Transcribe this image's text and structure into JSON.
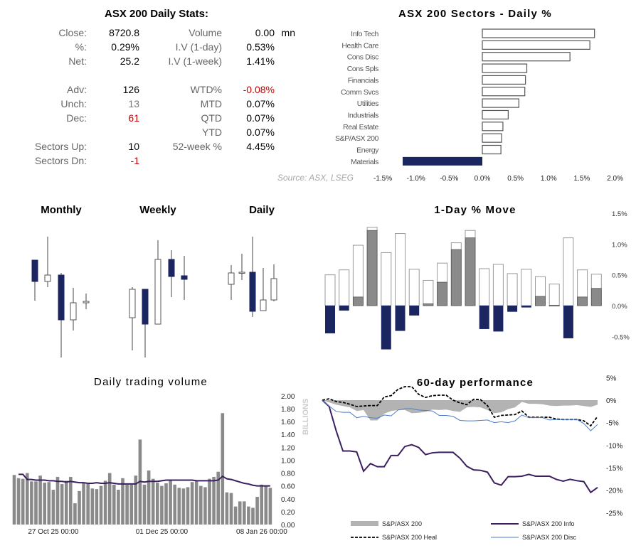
{
  "stats": {
    "title": "ASX 200 Daily Stats:",
    "left": [
      {
        "label": "Close:",
        "value": "8720.8",
        "tone": "normal"
      },
      {
        "label": "%:",
        "value": "0.29%",
        "tone": "normal"
      },
      {
        "label": "Net:",
        "value": "25.2",
        "tone": "normal"
      },
      {
        "label": "Adv:",
        "value": "126",
        "tone": "normal"
      },
      {
        "label": "Unch:",
        "value": "13",
        "tone": "gray"
      },
      {
        "label": "Dec:",
        "value": "61",
        "tone": "red"
      },
      {
        "label": "Sectors Up:",
        "value": "10",
        "tone": "normal"
      },
      {
        "label": "Sectors Dn:",
        "value": "-1",
        "tone": "red"
      }
    ],
    "right": [
      {
        "label": "Volume",
        "value": "0.00",
        "unit": "mn",
        "tone": "normal"
      },
      {
        "label": "I.V (1-day)",
        "value": "0.53%",
        "tone": "normal"
      },
      {
        "label": "I.V (1-week)",
        "value": "1.41%",
        "tone": "normal"
      },
      {
        "label": "WTD%",
        "value": "-0.08%",
        "tone": "red"
      },
      {
        "label": "MTD",
        "value": "0.07%",
        "tone": "normal"
      },
      {
        "label": "QTD",
        "value": "0.07%",
        "tone": "normal"
      },
      {
        "label": "YTD",
        "value": "0.07%",
        "tone": "normal"
      },
      {
        "label": "52-week %",
        "value": "4.45%",
        "tone": "normal"
      }
    ],
    "source": "Source: ASX, LSEG"
  },
  "colors": {
    "navy": "#1b2660",
    "gray_bar": "#8a8a8a",
    "purple": "#3b1f5e",
    "blue": "#4a7cc9",
    "red": "#c00000",
    "area": "#b3b3b3"
  },
  "chart_data": [
    {
      "id": "sectors",
      "type": "bar",
      "orientation": "horizontal",
      "title": "ASX 200 Sectors - Daily %",
      "categories": [
        "Info Tech",
        "Health Care",
        "Cons Disc",
        "Cons Spls",
        "Financials",
        "Comm Svcs",
        "Utilities",
        "Industrials",
        "Real Estate",
        "S&P/ASX 200",
        "Energy",
        "Materials"
      ],
      "values": [
        1.69,
        1.62,
        1.32,
        0.67,
        0.65,
        0.64,
        0.55,
        0.39,
        0.31,
        0.29,
        0.28,
        -1.2
      ],
      "xlim": [
        -1.5,
        2.0
      ],
      "ticks": [
        "-1.5%",
        "-1.0%",
        "-0.5%",
        "0.0%",
        "0.5%",
        "1.0%",
        "1.5%",
        "2.0%"
      ],
      "tick_values": [
        -1.5,
        -1.0,
        -0.5,
        0,
        0.5,
        1.0,
        1.5,
        2.0
      ]
    },
    {
      "id": "monthly",
      "type": "candlestick",
      "title": "Monthly",
      "candles": [
        {
          "o": 144,
          "h": 144,
          "l": 87,
          "c": 114
        },
        {
          "o": 114,
          "h": 177,
          "l": 106,
          "c": 123
        },
        {
          "o": 123,
          "h": 126,
          "l": 7,
          "c": 60
        },
        {
          "o": 60,
          "h": 105,
          "l": 45,
          "c": 84
        },
        {
          "o": 84,
          "h": 97,
          "l": 75,
          "c": 86
        }
      ]
    },
    {
      "id": "weekly",
      "type": "candlestick",
      "title": "Weekly",
      "candles": [
        {
          "o": 63,
          "h": 106,
          "l": 17,
          "c": 103
        },
        {
          "o": 103,
          "h": 103,
          "l": 7,
          "c": 54
        },
        {
          "o": 54,
          "h": 172,
          "l": 54,
          "c": 145
        },
        {
          "o": 145,
          "h": 158,
          "l": 92,
          "c": 121
        },
        {
          "o": 122,
          "h": 150,
          "l": 88,
          "c": 117
        }
      ]
    },
    {
      "id": "daily",
      "type": "candlestick",
      "title": "Daily",
      "candles": [
        {
          "o": 110,
          "h": 137,
          "l": 88,
          "c": 126
        },
        {
          "o": 126,
          "h": 153,
          "l": 116,
          "c": 127
        },
        {
          "o": 127,
          "h": 177,
          "l": 64,
          "c": 72
        },
        {
          "o": 73,
          "h": 133,
          "l": 73,
          "c": 88
        },
        {
          "o": 88,
          "h": 138,
          "l": 86,
          "c": 118
        }
      ]
    },
    {
      "id": "one_day_move",
      "type": "bar",
      "title": "1-Day % Move",
      "ylim": [
        -0.75,
        1.5
      ],
      "yticks": [
        "1.5%",
        "1.0%",
        "0.5%",
        "0.0%",
        "-0.5%"
      ],
      "ytick_values": [
        1.5,
        1.0,
        0.5,
        0.0,
        -0.5
      ],
      "series": [
        {
          "role": "outline",
          "values": [
            0.5,
            0.58,
            0.98,
            1.27,
            0.86,
            1.17,
            0.59,
            0.41,
            0.69,
            1.02,
            1.22,
            0.6,
            0.67,
            0.52,
            0.59,
            0.47,
            0.35,
            1.1,
            0.58,
            0.51
          ]
        },
        {
          "role": "gray",
          "values": [
            0,
            0,
            0.14,
            1.22,
            0,
            0,
            0,
            0.03,
            0.38,
            0.91,
            1.1,
            0,
            0,
            0,
            0,
            0.15,
            0.005,
            0,
            0.14,
            0.28
          ]
        },
        {
          "role": "navy",
          "values": [
            -0.45,
            -0.08,
            0,
            0,
            -0.71,
            -0.41,
            -0.16,
            0,
            0,
            0,
            0,
            -0.38,
            -0.42,
            -0.1,
            -0.03,
            0,
            0,
            -0.53,
            0,
            0
          ]
        }
      ]
    },
    {
      "id": "volume",
      "type": "bar",
      "title": "Daily trading volume",
      "ylabel": "BILLIONS",
      "ylim": [
        0,
        2.0
      ],
      "yticks": [
        "2.00",
        "1.80",
        "1.60",
        "1.40",
        "1.20",
        "1.00",
        "0.80",
        "0.60",
        "0.40",
        "0.20",
        "0.00"
      ],
      "ytick_values": [
        2.0,
        1.8,
        1.6,
        1.4,
        1.2,
        1.0,
        0.8,
        0.6,
        0.4,
        0.2,
        0.0
      ],
      "xticks": [
        {
          "label": "27 Oct 25 00:00",
          "index": 9
        },
        {
          "label": "01 Dec 25 00:00",
          "index": 34
        },
        {
          "label": "08 Jan 26 00:00",
          "index": 59
        }
      ],
      "values": [
        0.77,
        0.72,
        0.71,
        0.8,
        0.67,
        0.67,
        0.76,
        0.65,
        0.66,
        0.54,
        0.74,
        0.63,
        0.68,
        0.74,
        0.33,
        0.52,
        0.65,
        0.63,
        0.56,
        0.55,
        0.6,
        0.68,
        0.8,
        0.62,
        0.54,
        0.72,
        0.62,
        0.62,
        0.76,
        1.32,
        0.62,
        0.84,
        0.71,
        0.65,
        0.6,
        0.64,
        0.69,
        0.62,
        0.57,
        0.56,
        0.58,
        0.66,
        0.68,
        0.6,
        0.58,
        0.71,
        0.74,
        0.82,
        1.73,
        0.5,
        0.49,
        0.28,
        0.36,
        0.36,
        0.28,
        0.26,
        0.43,
        0.62,
        0.6,
        0.57
      ],
      "moving_average": [
        null,
        0.78,
        0.78,
        0.7,
        0.7,
        0.69,
        0.69,
        0.69,
        0.68,
        0.68,
        0.67,
        0.67,
        0.66,
        0.67,
        0.66,
        0.65,
        0.65,
        0.64,
        0.64,
        0.65,
        0.64,
        0.64,
        0.65,
        0.64,
        0.63,
        0.63,
        0.63,
        0.63,
        0.63,
        0.67,
        0.66,
        0.67,
        0.67,
        0.67,
        0.68,
        0.69,
        0.69,
        0.69,
        0.69,
        0.69,
        0.69,
        0.69,
        0.68,
        0.68,
        0.68,
        0.68,
        0.68,
        0.69,
        0.75,
        0.71,
        0.7,
        0.68,
        0.66,
        0.64,
        0.63,
        0.61,
        0.6,
        0.6,
        0.6,
        0.6
      ]
    },
    {
      "id": "perf60",
      "type": "line",
      "title": "60-day performance",
      "ylim": [
        -25,
        5
      ],
      "yticks": [
        "5%",
        "0%",
        "-5%",
        "-10%",
        "-15%",
        "-20%",
        "-25%"
      ],
      "ytick_values": [
        5,
        0,
        -5,
        -10,
        -15,
        -20,
        -25
      ],
      "series": [
        {
          "name": "S&P/ASX 200",
          "style": "area",
          "values": [
            0,
            -0.5,
            -1.0,
            -1.3,
            -1.6,
            -2.4,
            -2.2,
            -4.5,
            -4.5,
            -3.0,
            -2.4,
            -2.2,
            -2.2,
            -2.9,
            -2.8,
            -2.6,
            -2.1,
            -2.2,
            -2.1,
            -2.4,
            -2.6,
            -1.6,
            -1.5,
            -1.6,
            -2.2,
            -2.9,
            -2.7,
            -2.0,
            -1.6,
            -0.4,
            -0.8,
            -0.8,
            -0.9,
            -1.2,
            -1.3,
            -1.2,
            -1.2,
            -1.1,
            -1.3,
            -1.5,
            -1.0
          ]
        },
        {
          "name": "S&P/ASX 200 Info",
          "style": "solid-purple",
          "values": [
            0,
            -1.4,
            -6.7,
            -11.3,
            -11.3,
            -11.5,
            -15.8,
            -14.1,
            -14.8,
            -14.8,
            -12.3,
            -12.3,
            -10.3,
            -9.9,
            -10.5,
            -12.1,
            -11.7,
            -11.6,
            -11.6,
            -11.6,
            -12.9,
            -14.7,
            -15.5,
            -15.6,
            -16.0,
            -18.4,
            -18.9,
            -17.0,
            -17.0,
            -16.9,
            -16.5,
            -16.9,
            -16.9,
            -16.9,
            -17.6,
            -18.0,
            -17.6,
            -17.9,
            -18.1,
            -20.5,
            -19.4
          ]
        },
        {
          "name": "S&P/ASX 200 Heal",
          "style": "dashed-black",
          "values": [
            0,
            0.3,
            -0.3,
            -0.5,
            -0.9,
            -1.4,
            -1.3,
            -1.2,
            -1.2,
            0.7,
            1.0,
            2.4,
            3.0,
            3.0,
            1.3,
            0.6,
            1.0,
            1.1,
            1.1,
            0.0,
            -0.6,
            -1.0,
            0.2,
            0.1,
            -1.2,
            -3.8,
            -3.4,
            -3.3,
            -3.2,
            -2.4,
            -3.8,
            -3.8,
            -3.8,
            -3.8,
            -4.2,
            -4.3,
            -4.3,
            -4.3,
            -4.6,
            -5.7,
            -3.6
          ]
        },
        {
          "name": "S&P/ASX 200 Disc",
          "style": "thin-blue",
          "values": [
            0,
            -1.3,
            -2.5,
            -2.7,
            -2.7,
            -3.9,
            -3.6,
            -3.9,
            -4.0,
            -3.3,
            -3.5,
            -2.2,
            -1.9,
            -1.9,
            -2.2,
            -2.3,
            -2.4,
            -3.4,
            -3.4,
            -3.6,
            -4.5,
            -4.6,
            -4.6,
            -4.5,
            -4.4,
            -5.0,
            -4.8,
            -5.0,
            -4.6,
            -3.3,
            -3.9,
            -3.9,
            -3.9,
            -4.4,
            -4.3,
            -4.3,
            -4.3,
            -4.3,
            -5.2,
            -6.8,
            -5.4
          ]
        }
      ],
      "legend": "bottom"
    }
  ]
}
